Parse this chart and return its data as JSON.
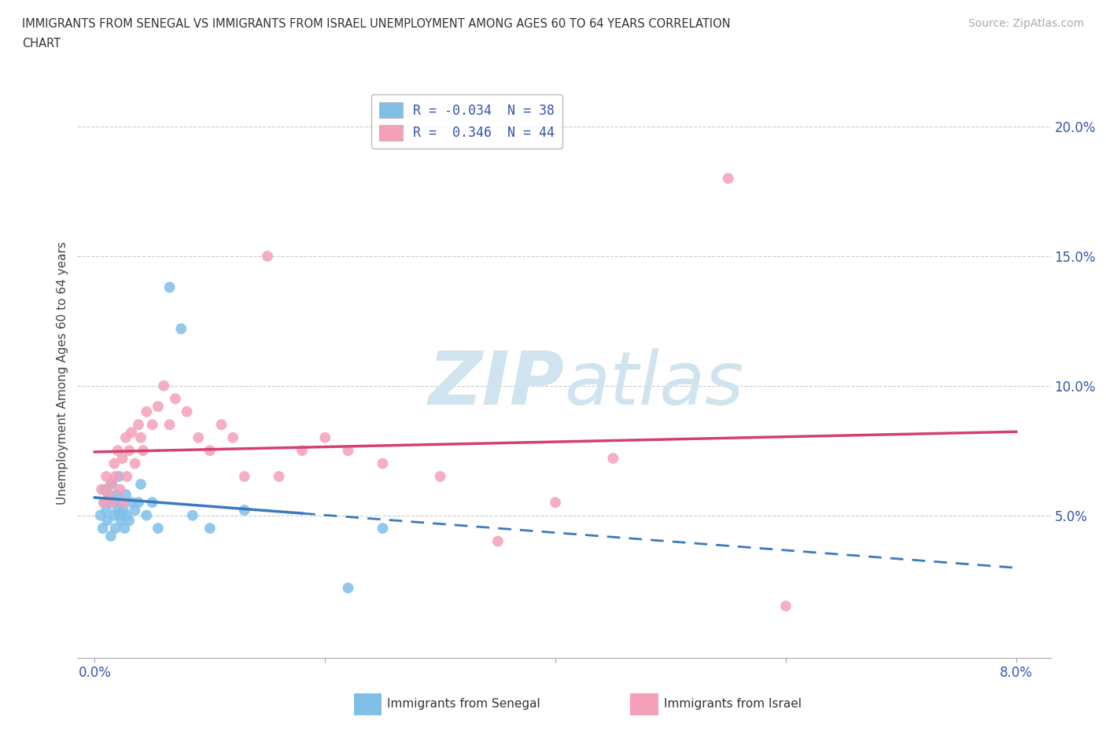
{
  "title_line1": "IMMIGRANTS FROM SENEGAL VS IMMIGRANTS FROM ISRAEL UNEMPLOYMENT AMONG AGES 60 TO 64 YEARS CORRELATION",
  "title_line2": "CHART",
  "source_text": "Source: ZipAtlas.com",
  "ylabel": "Unemployment Among Ages 60 to 64 years",
  "senegal_color": "#7fbfe8",
  "israel_color": "#f4a0b8",
  "senegal_line_color": "#3a7abf",
  "israel_line_color": "#d44070",
  "watermark_color": "#d0e4f0",
  "background_color": "#ffffff",
  "senegal_x": [
    0.05,
    0.07,
    0.08,
    0.09,
    0.1,
    0.11,
    0.12,
    0.13,
    0.14,
    0.15,
    0.16,
    0.17,
    0.18,
    0.19,
    0.2,
    0.21,
    0.22,
    0.23,
    0.24,
    0.25,
    0.26,
    0.27,
    0.28,
    0.3,
    0.32,
    0.35,
    0.38,
    0.4,
    0.45,
    0.5,
    0.55,
    0.65,
    0.75,
    0.85,
    1.0,
    1.3,
    2.2,
    2.5
  ],
  "senegal_y": [
    5.0,
    4.5,
    5.5,
    6.0,
    5.2,
    4.8,
    5.8,
    5.5,
    4.2,
    6.2,
    5.5,
    5.0,
    4.5,
    5.8,
    5.2,
    6.5,
    5.0,
    4.8,
    5.5,
    5.2,
    4.5,
    5.8,
    5.0,
    4.8,
    5.5,
    5.2,
    5.5,
    6.2,
    5.0,
    5.5,
    4.5,
    13.8,
    12.2,
    5.0,
    4.5,
    5.2,
    2.2,
    4.5
  ],
  "israel_x": [
    0.06,
    0.08,
    0.1,
    0.12,
    0.14,
    0.15,
    0.17,
    0.18,
    0.2,
    0.22,
    0.24,
    0.25,
    0.27,
    0.28,
    0.3,
    0.32,
    0.35,
    0.38,
    0.4,
    0.42,
    0.45,
    0.5,
    0.55,
    0.6,
    0.65,
    0.7,
    0.8,
    0.9,
    1.0,
    1.1,
    1.2,
    1.3,
    1.5,
    1.6,
    1.8,
    2.0,
    2.2,
    2.5,
    3.0,
    3.5,
    4.0,
    4.5,
    5.5,
    6.0
  ],
  "israel_y": [
    6.0,
    5.5,
    6.5,
    5.8,
    6.2,
    5.5,
    7.0,
    6.5,
    7.5,
    6.0,
    7.2,
    5.5,
    8.0,
    6.5,
    7.5,
    8.2,
    7.0,
    8.5,
    8.0,
    7.5,
    9.0,
    8.5,
    9.2,
    10.0,
    8.5,
    9.5,
    9.0,
    8.0,
    7.5,
    8.5,
    8.0,
    6.5,
    15.0,
    6.5,
    7.5,
    8.0,
    7.5,
    7.0,
    6.5,
    4.0,
    5.5,
    7.2,
    18.0,
    1.5
  ],
  "xlim": [
    0.0,
    8.0
  ],
  "ylim": [
    0.0,
    21.0
  ],
  "yticks": [
    5.0,
    10.0,
    15.0,
    20.0
  ],
  "ytick_labels": [
    "5.0%",
    "10.0%",
    "15.0%",
    "20.0%"
  ],
  "xtick_labels_show": [
    "0.0%",
    "8.0%"
  ],
  "text_color": "#3355aa",
  "legend_label1": "R = -0.034  N = 38",
  "legend_label2": "R =  0.346  N = 44",
  "bottom_label1": "Immigrants from Senegal",
  "bottom_label2": "Immigrants from Israel"
}
